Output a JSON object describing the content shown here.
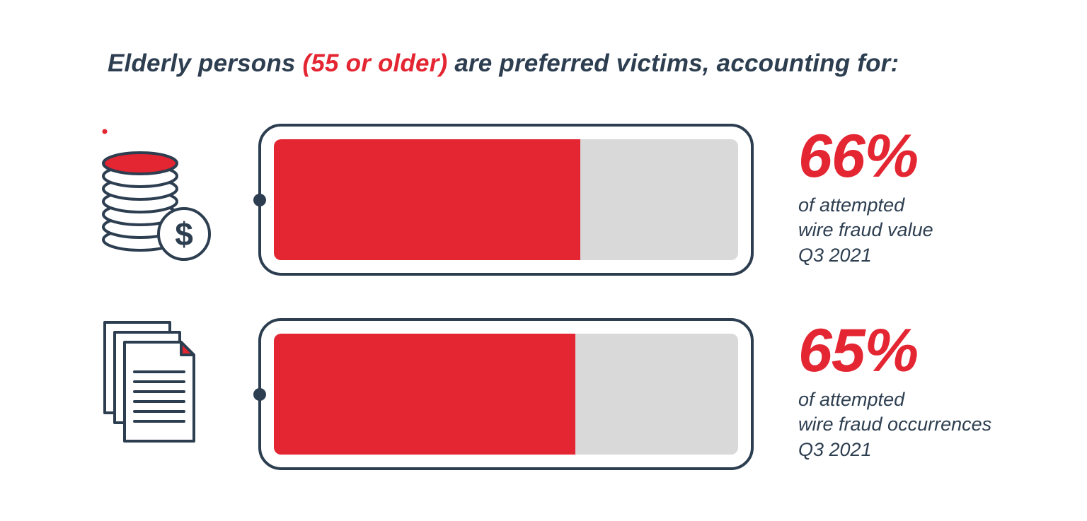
{
  "title": {
    "prefix": "Elderly persons ",
    "highlight": "(55 or older)",
    "suffix": " are preferred victims, accounting for:"
  },
  "colors": {
    "red": "#e42532",
    "navy": "#2d3e50",
    "gray": "#d9d9d9"
  },
  "chart_data": {
    "type": "bar",
    "orientation": "horizontal",
    "title": "Elderly persons (55 or older) are preferred victims, accounting for:",
    "categories": [
      "of attempted wire fraud value Q3 2021",
      "of attempted wire fraud occurrences Q3 2021"
    ],
    "values": [
      66,
      65
    ],
    "unit": "%",
    "xlim": [
      0,
      100
    ],
    "grid": false,
    "legend": false,
    "bar_color": "#e42532",
    "track_color": "#d9d9d9"
  },
  "rows": [
    {
      "icon": "coin-stack-dollar-icon",
      "percent": "66%",
      "value": 66,
      "label": "of attempted\nwire fraud value\nQ3 2021"
    },
    {
      "icon": "documents-icon",
      "percent": "65%",
      "value": 65,
      "label": "of attempted\nwire fraud occurrences\nQ3 2021"
    }
  ]
}
